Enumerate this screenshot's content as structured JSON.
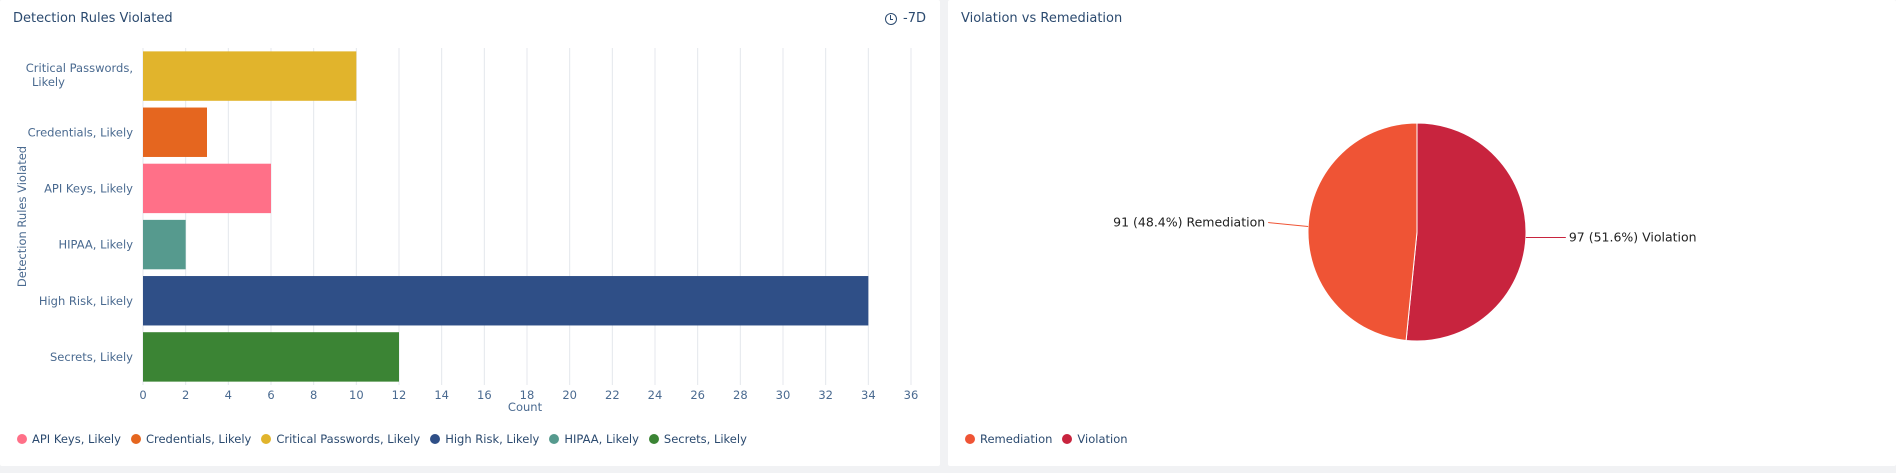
{
  "panels": {
    "left": {
      "title": "Detection Rules Violated",
      "time_range": "-7D",
      "time_icon": "clock-icon"
    },
    "right": {
      "title": "Violation vs Remediation"
    }
  },
  "chart_data": [
    {
      "type": "bar",
      "orientation": "horizontal",
      "title": "Detection Rules Violated",
      "xlabel": "Count",
      "ylabel": "Detection Rules Violated",
      "xlim": [
        0,
        36
      ],
      "xticks": [
        0,
        2,
        4,
        6,
        8,
        10,
        12,
        14,
        16,
        18,
        20,
        22,
        24,
        26,
        28,
        30,
        32,
        34,
        36
      ],
      "grid": true,
      "categories": [
        "Critical Passwords, Likely",
        "Credentials, Likely",
        "API Keys, Likely",
        "HIPAA, Likely",
        "High Risk, Likely",
        "Secrets, Likely"
      ],
      "values": [
        10,
        3,
        6,
        2,
        34,
        12
      ],
      "colors": [
        "#e1b42c",
        "#e5661f",
        "#ff7088",
        "#569a8e",
        "#2f4f87",
        "#3b8434"
      ],
      "legend": {
        "placement": "bottom-left",
        "items": [
          {
            "label": "API Keys, Likely",
            "color": "#ff7088"
          },
          {
            "label": "Credentials, Likely",
            "color": "#e5661f"
          },
          {
            "label": "Critical Passwords, Likely",
            "color": "#e1b42c"
          },
          {
            "label": "High Risk, Likely",
            "color": "#2f4f87"
          },
          {
            "label": "HIPAA, Likely",
            "color": "#569a8e"
          },
          {
            "label": "Secrets, Likely",
            "color": "#3b8434"
          }
        ]
      }
    },
    {
      "type": "pie",
      "title": "Violation vs Remediation",
      "slices": [
        {
          "name": "Violation",
          "value": 97,
          "percent": 51.6,
          "color": "#c8243e",
          "label": "97 (51.6%) Violation"
        },
        {
          "name": "Remediation",
          "value": 91,
          "percent": 48.4,
          "color": "#ef5435",
          "label": "91 (48.4%) Remediation"
        }
      ],
      "legend": {
        "placement": "bottom-left",
        "items": [
          {
            "label": "Remediation",
            "color": "#ef5435"
          },
          {
            "label": "Violation",
            "color": "#c8243e"
          }
        ]
      }
    }
  ]
}
